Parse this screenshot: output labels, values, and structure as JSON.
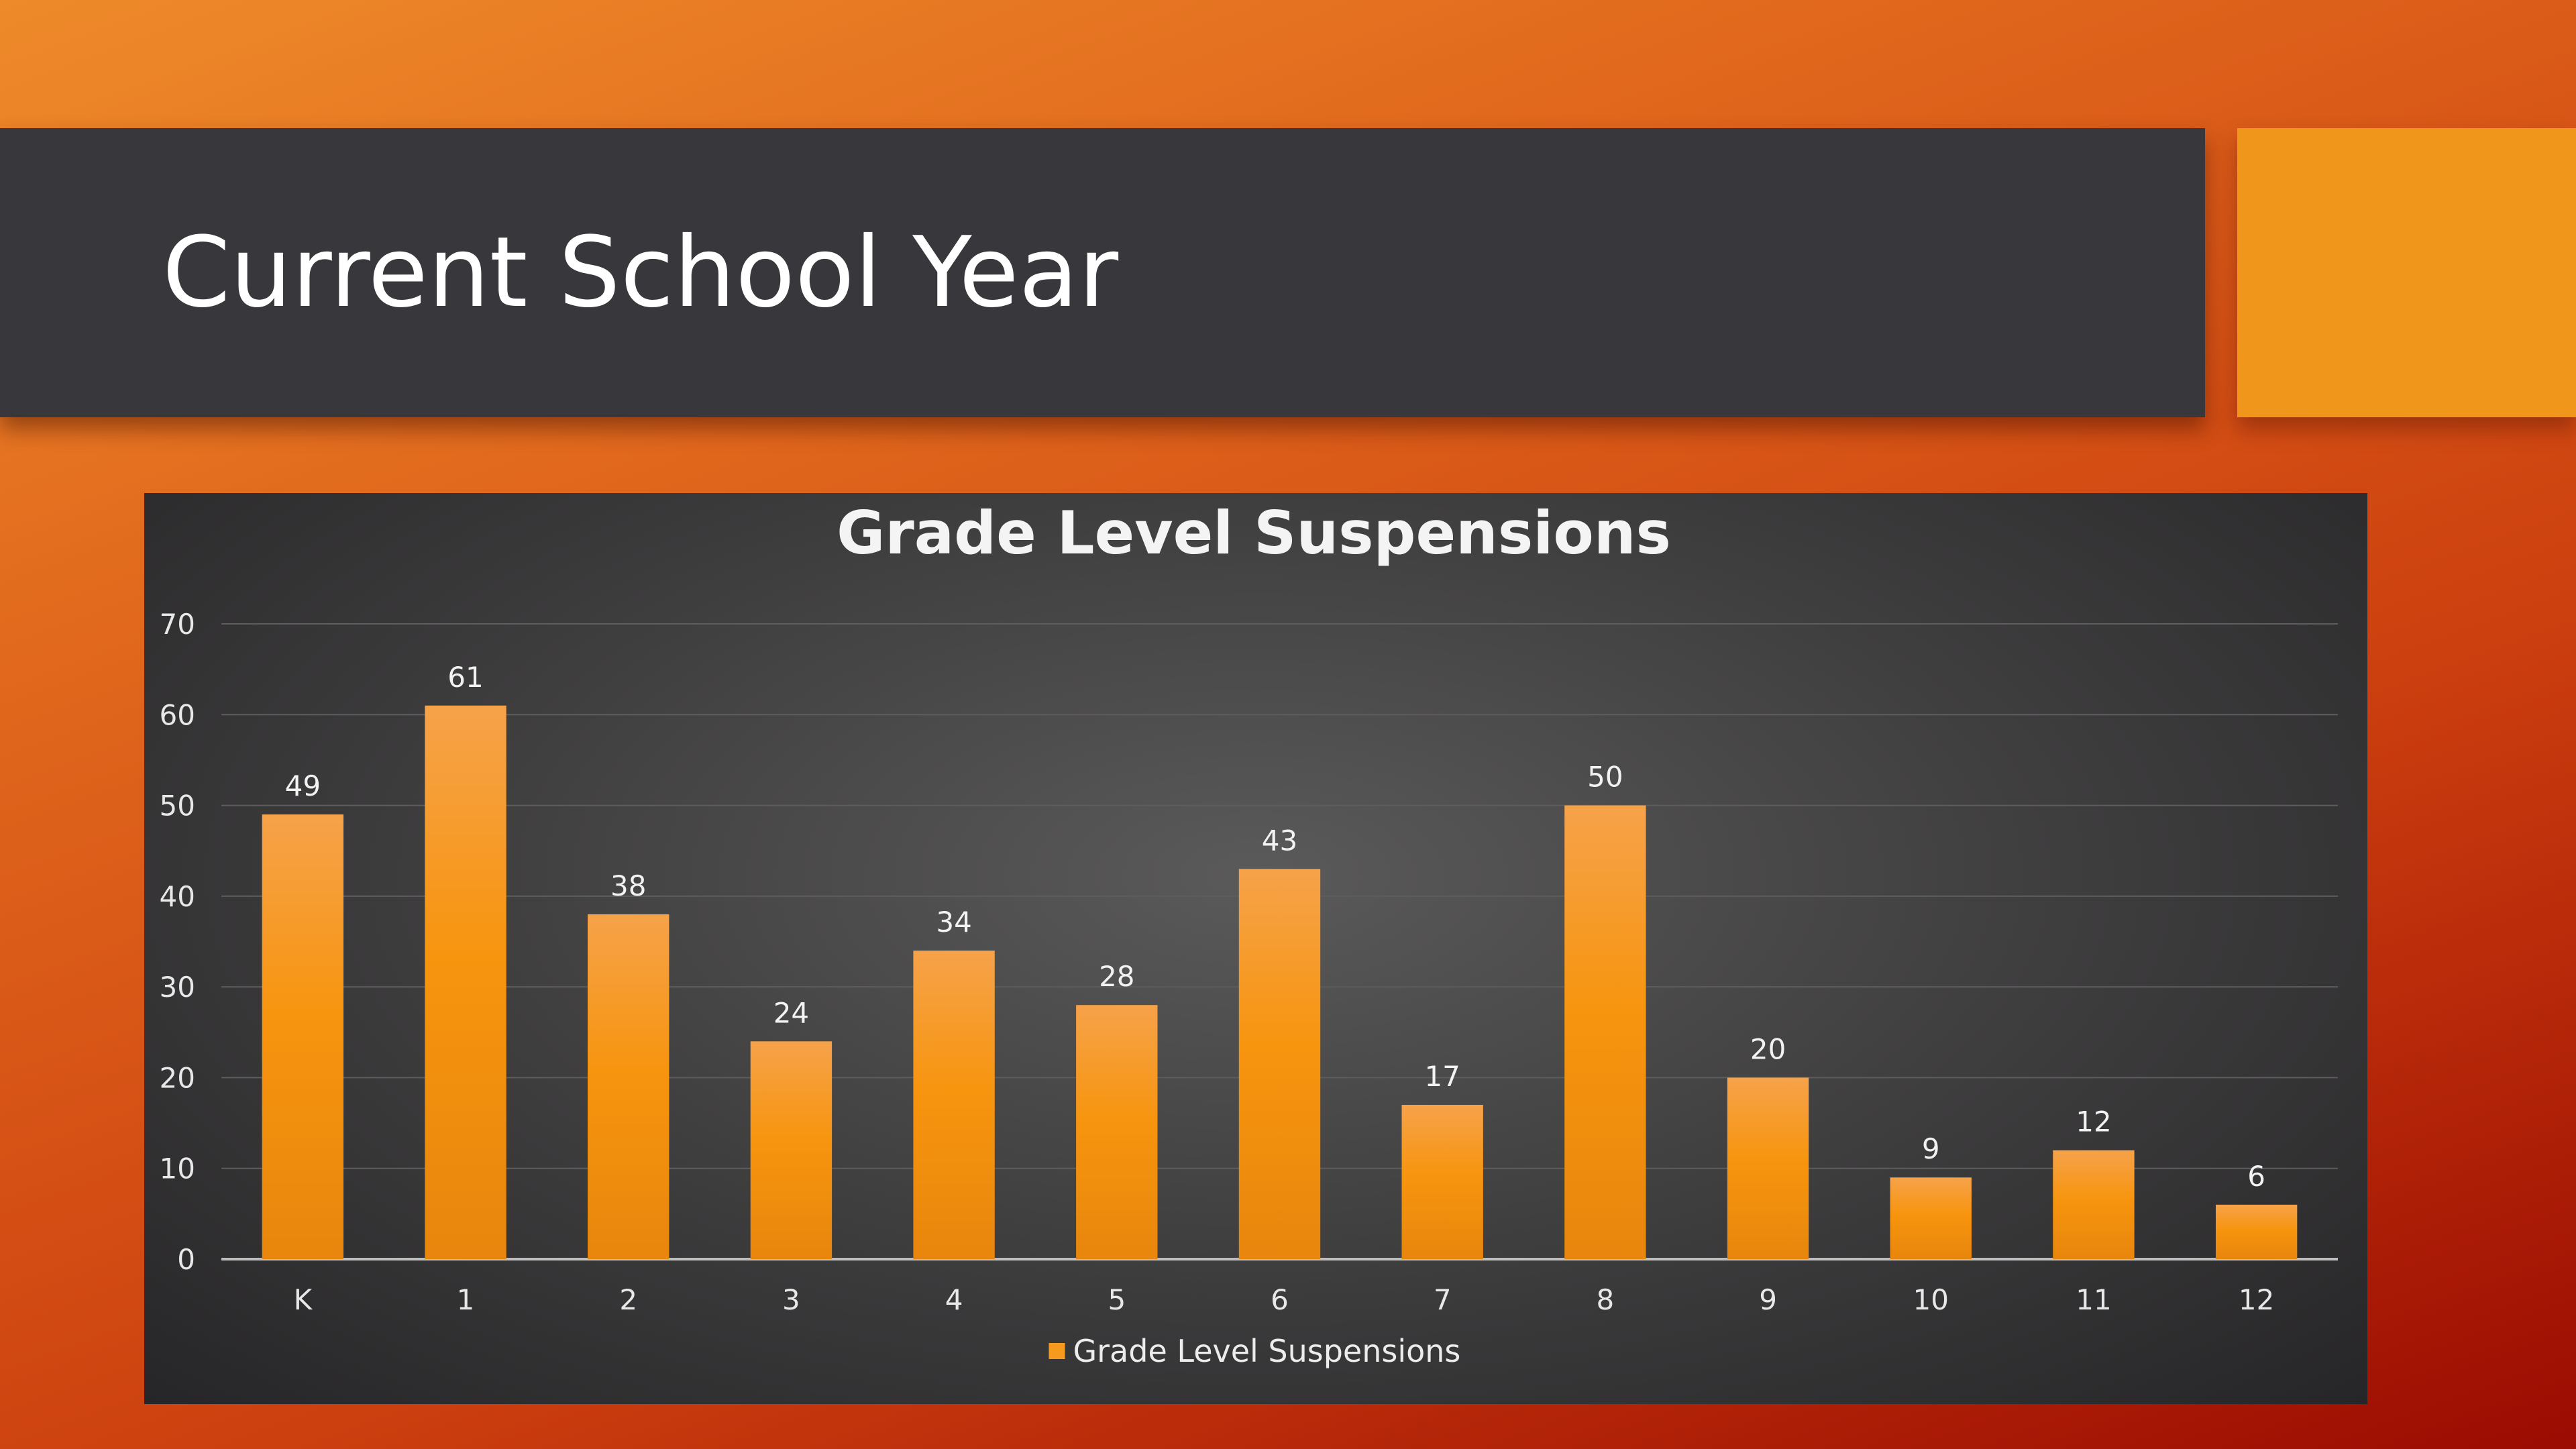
{
  "slide": {
    "title": "Current School Year"
  },
  "colors": {
    "title_bar": "#38373b",
    "accent_box": "#f0961a",
    "bar_fill": "#f59a1c",
    "chart_background": "#3d3c3d"
  },
  "chart_data": {
    "type": "bar",
    "title": "Grade Level Suspensions",
    "categories": [
      "K",
      "1",
      "2",
      "3",
      "4",
      "5",
      "6",
      "7",
      "8",
      "9",
      "10",
      "11",
      "12"
    ],
    "series": [
      {
        "name": "Grade Level Suspensions",
        "values": [
          49,
          61,
          38,
          24,
          34,
          28,
          43,
          17,
          50,
          20,
          9,
          12,
          6
        ]
      }
    ],
    "ylim": [
      0,
      70
    ],
    "yticks": [
      0,
      10,
      20,
      30,
      40,
      50,
      60,
      70
    ],
    "grid": true,
    "data_labels": true,
    "legend_position": "bottom"
  }
}
